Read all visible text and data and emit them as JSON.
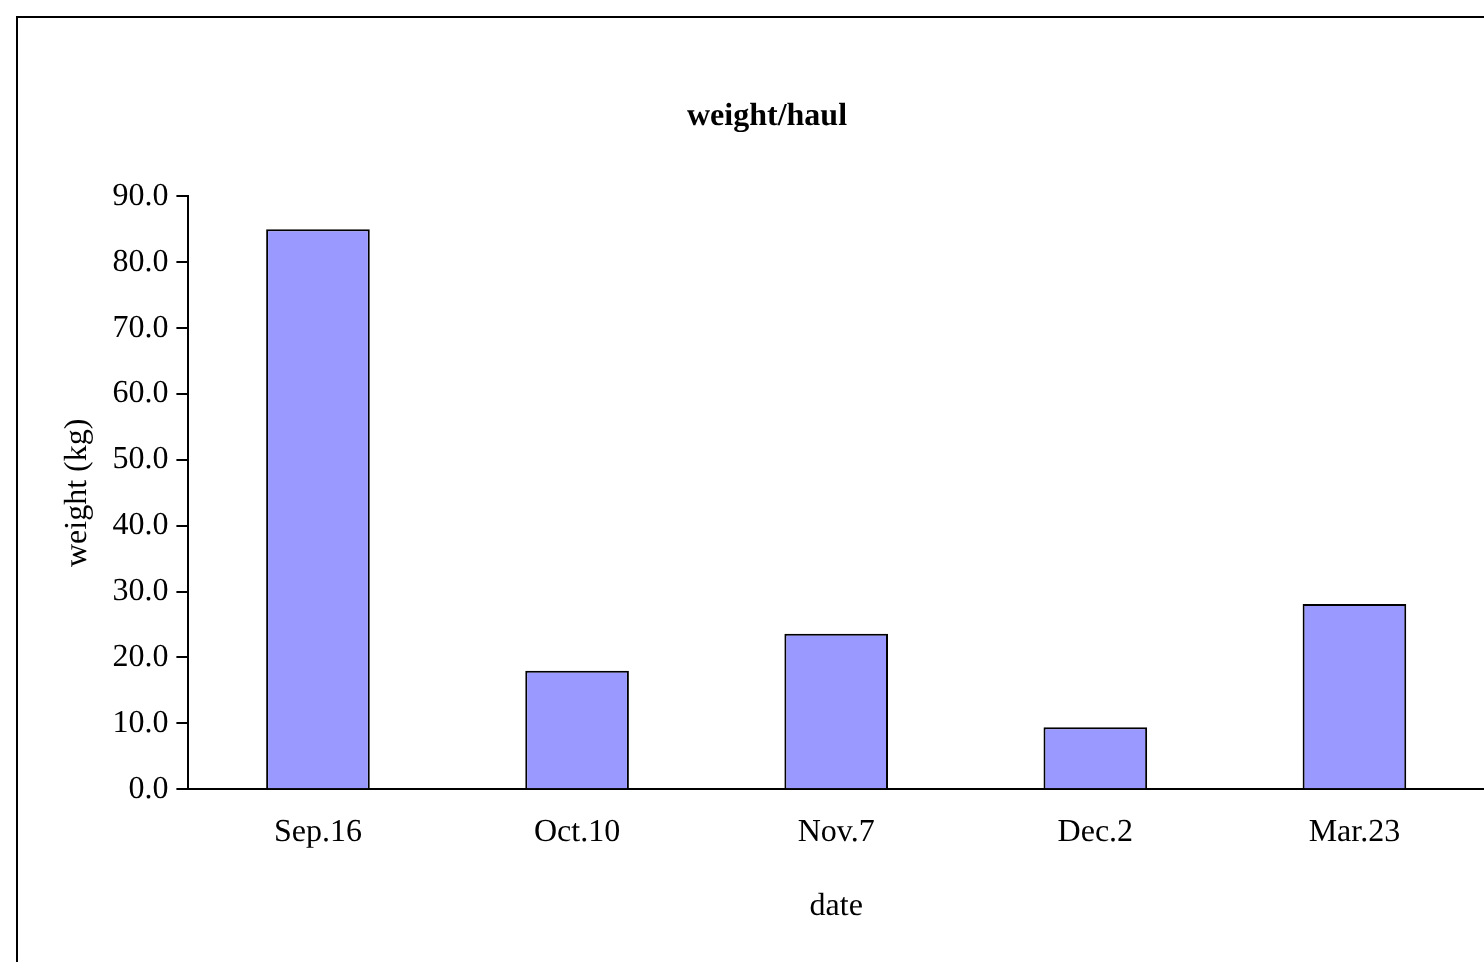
{
  "chart_data": {
    "type": "bar",
    "title": "weight/haul",
    "xlabel": "date",
    "ylabel": "weight (kg)",
    "categories": [
      "Sep.16",
      "Oct.10",
      "Nov.7",
      "Dec.2",
      "Mar.23"
    ],
    "values": [
      85.0,
      18.0,
      23.6,
      9.4,
      28.1
    ],
    "color": "#9999ff",
    "ylim": [
      0,
      90
    ],
    "yticks": [
      {
        "value": 0,
        "label": "0.0"
      },
      {
        "value": 10,
        "label": "10.0"
      },
      {
        "value": 20,
        "label": "20.0"
      },
      {
        "value": 30,
        "label": "30.0"
      },
      {
        "value": 40,
        "label": "40.0"
      },
      {
        "value": 50,
        "label": "50.0"
      },
      {
        "value": 60,
        "label": "60.0"
      },
      {
        "value": 70,
        "label": "70.0"
      },
      {
        "value": 80,
        "label": "80.0"
      },
      {
        "value": 90,
        "label": "90.0"
      }
    ],
    "grid": false,
    "legend": false
  }
}
